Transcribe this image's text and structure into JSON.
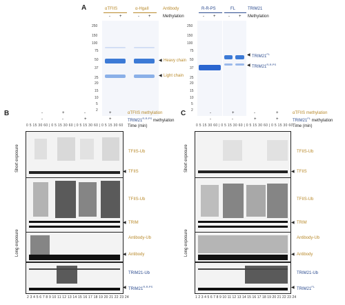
{
  "panel_a": {
    "label": "A",
    "gel1": {
      "col1": "αTFIIS",
      "col2": "α-HgaII",
      "row1_label": "Antibody",
      "row2_label": "Methylation",
      "signs": [
        "-",
        "+",
        "-",
        "+"
      ],
      "mw": [
        "250",
        "150",
        "100",
        "75",
        "50",
        "37",
        "25",
        "20",
        "15",
        "10",
        "5",
        "2"
      ],
      "bands": [
        "Heavy chain",
        "Light chain"
      ]
    },
    "gel2": {
      "col1": "R-R-PS",
      "col2": "FL",
      "row1_label": "TRIM21",
      "row2_label": "Methylation",
      "signs": [
        "-",
        "+",
        "-",
        "+"
      ],
      "mw": [
        "250",
        "150",
        "100",
        "75",
        "50",
        "37",
        "25",
        "20",
        "15",
        "10",
        "5",
        "2"
      ],
      "band_fl": "TRIM21",
      "band_fl_sup": "FL",
      "band_rrp": "TRIM21",
      "band_rrp_sup": "R-R-PS"
    }
  },
  "panel_b": {
    "label": "B",
    "signs_row1": [
      "-",
      "+",
      "-",
      "+"
    ],
    "signs_row2": [
      "-",
      "-",
      "+",
      "+"
    ],
    "row1_label": "αTFIIS methylation",
    "row2_label": "TRIM21",
    "row2_label_sup": "R-R-PS",
    "row2_label_tail": " methylation",
    "time_label": "Time (min)",
    "short_exposure": "Short exposure",
    "long_exposure": "Long exposure",
    "labels": [
      "TFIIS-Ub",
      "TFIIS",
      "TFIIS-Ub",
      "TRIM",
      "Antibody-Ub",
      "Antibody",
      "TRIM21-Ub",
      "TRIM21"
    ],
    "label_trim21_sup": "R-R-PS",
    "lanes": "2 3 4 5 6 7 8 9 10 11 12 13 14 15 16 17 18 19 20 21 22 23 24"
  },
  "panel_c": {
    "label": "C",
    "signs_row1": [
      "-",
      "+",
      "-",
      "+"
    ],
    "signs_row2": [
      "-",
      "-",
      "+",
      "+"
    ],
    "row1_label": "αTFIIS methylation",
    "row2_label": "TRIM21",
    "row2_label_sup": "FL",
    "row2_label_tail": " methylation",
    "time_label": "Time (min)",
    "short_exposure": "Short exposure",
    "long_exposure": "Long exposure",
    "labels": [
      "TFIIS-Ub",
      "TFIIS",
      "TFIIS-Ub",
      "TRIM",
      "Antibody-Ub",
      "Antibody",
      "TRIM21-Ub",
      "TRIM21"
    ],
    "label_trim21_sup": "FL",
    "lanes": "1 2 3 4 5 6 7 8 9 10 11 12 13 14 15 16 17 18 19 20 21 22 23 24"
  },
  "colors": {
    "gold": "#b8892a",
    "blue": "#2a4a8e",
    "coomassie": "#3c7ad6"
  }
}
